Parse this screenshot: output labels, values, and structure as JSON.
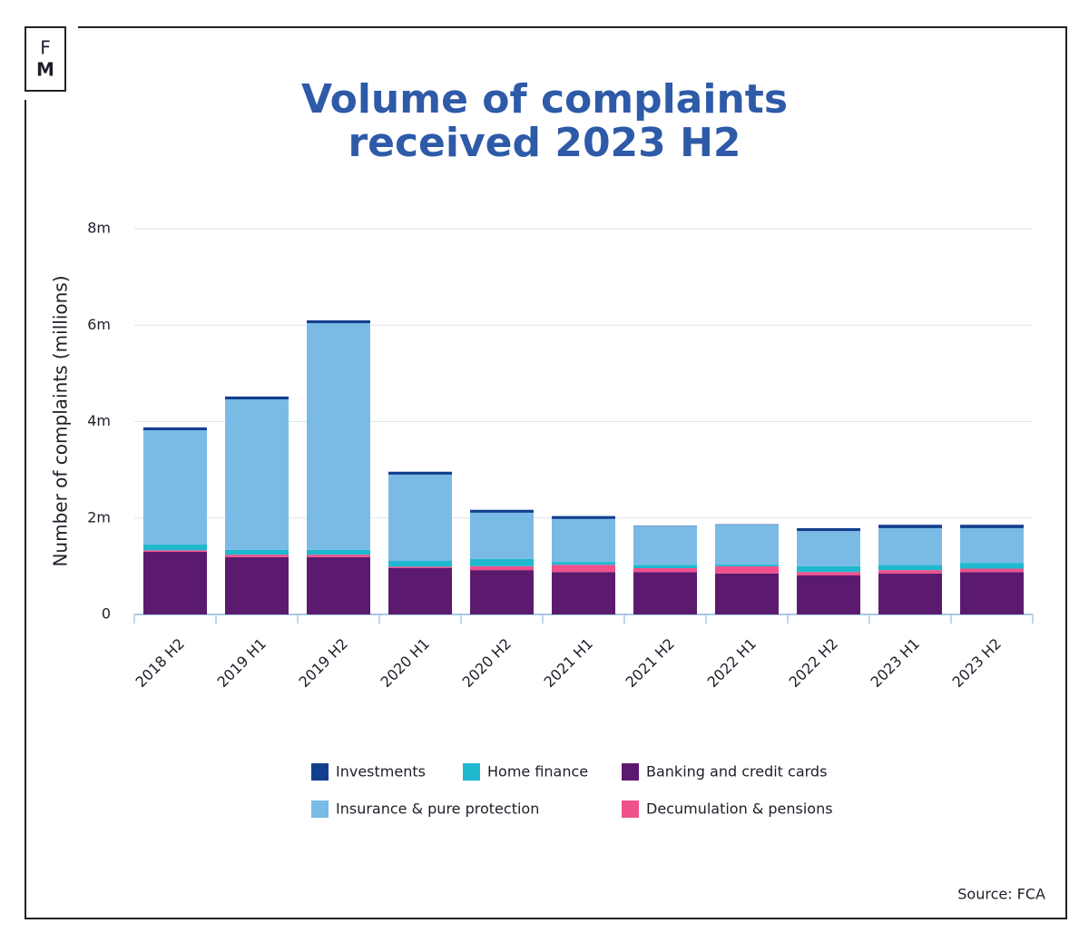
{
  "logo": [
    "F",
    "M"
  ],
  "chart_data": {
    "type": "stacked-bar",
    "title": [
      "Volume of complaints",
      "received 2023 H2"
    ],
    "y_label": "Number of complaints (millions)",
    "source": "Source: FCA",
    "categories": [
      "2018 H2",
      "2019 H1",
      "2019 H2",
      "2020 H1",
      "2020 H2",
      "2021 H1",
      "2021 H2",
      "2022 H1",
      "2022 H2",
      "2023 H1",
      "2023 H2"
    ],
    "series": [
      {
        "name": "Banking and credit cards",
        "color": "#5c1a6e",
        "values": [
          1.3,
          1.19,
          1.19,
          0.96,
          0.92,
          0.88,
          0.88,
          0.85,
          0.81,
          0.85,
          0.88
        ]
      },
      {
        "name": "Decumulation & pensions",
        "color": "#f0508c",
        "values": [
          0.03,
          0.05,
          0.05,
          0.03,
          0.08,
          0.15,
          0.08,
          0.15,
          0.07,
          0.07,
          0.07
        ]
      },
      {
        "name": "Home finance",
        "color": "#1fb8cf",
        "values": [
          0.12,
          0.1,
          0.1,
          0.12,
          0.15,
          0.06,
          0.07,
          0.04,
          0.12,
          0.11,
          0.12
        ]
      },
      {
        "name": "Insurance & pure protection",
        "color": "#7abbe5",
        "values": [
          2.37,
          3.12,
          4.7,
          1.79,
          0.96,
          0.89,
          0.8,
          0.82,
          0.73,
          0.76,
          0.72
        ]
      },
      {
        "name": "Investments",
        "color": "#123f8f",
        "values": [
          0.06,
          0.06,
          0.06,
          0.06,
          0.06,
          0.06,
          0.01,
          0.01,
          0.06,
          0.07,
          0.07
        ]
      }
    ],
    "ylim": [
      0,
      8
    ],
    "yticks": [
      0,
      {
        "value": 2,
        "label": "2m"
      },
      {
        "value": 4,
        "label": "4m"
      },
      {
        "value": 6,
        "label": "6m"
      },
      {
        "value": 8,
        "label": "8m"
      }
    ],
    "grid": true
  }
}
